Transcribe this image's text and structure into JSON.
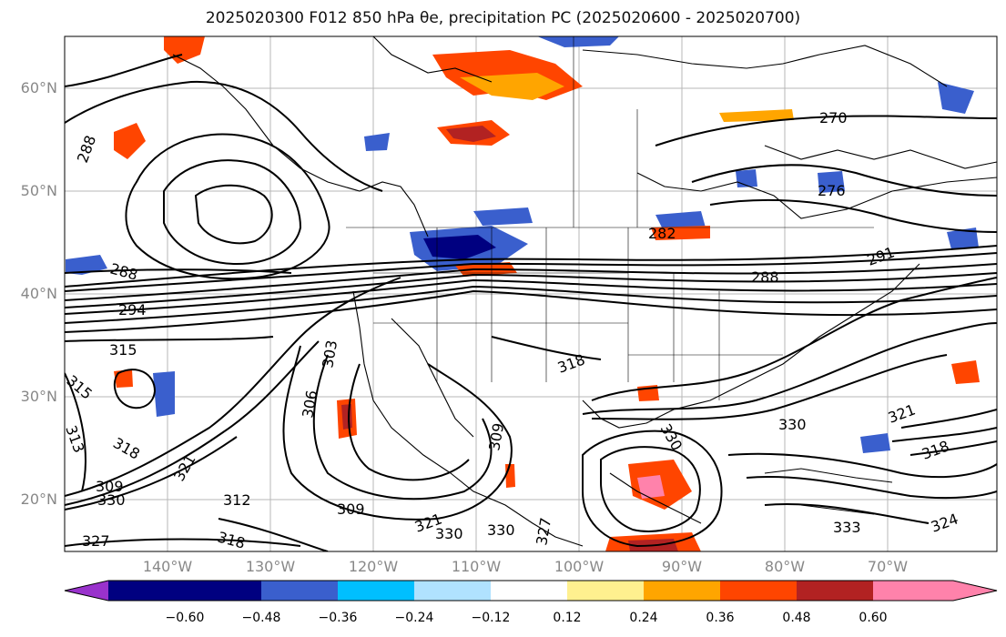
{
  "title": "2025020300 F012 850 hPa θe, precipitation PC (2025020600 - 2025020700)",
  "map": {
    "lat_labels": [
      "60°N",
      "50°N",
      "40°N",
      "30°N",
      "20°N"
    ],
    "lon_labels": [
      "140°W",
      "130°W",
      "120°W",
      "110°W",
      "100°W",
      "90°W",
      "80°W",
      "70°W"
    ],
    "contour_labels": [
      {
        "text": "288"
      },
      {
        "text": "288"
      },
      {
        "text": "294"
      },
      {
        "text": "315"
      },
      {
        "text": "315"
      },
      {
        "text": "318"
      },
      {
        "text": "313"
      },
      {
        "text": "309"
      },
      {
        "text": "330"
      },
      {
        "text": "327"
      },
      {
        "text": "321"
      },
      {
        "text": "312"
      },
      {
        "text": "318"
      },
      {
        "text": "309"
      },
      {
        "text": "306"
      },
      {
        "text": "303"
      },
      {
        "text": "321"
      },
      {
        "text": "330"
      },
      {
        "text": "330"
      },
      {
        "text": "327"
      },
      {
        "text": "318"
      },
      {
        "text": "309"
      },
      {
        "text": "330"
      },
      {
        "text": "270"
      },
      {
        "text": "276"
      },
      {
        "text": "282"
      },
      {
        "text": "288"
      },
      {
        "text": "291"
      },
      {
        "text": "321"
      },
      {
        "text": "318"
      },
      {
        "text": "330"
      },
      {
        "text": "333"
      },
      {
        "text": "324"
      }
    ]
  },
  "colorbar": {
    "tick_labels": [
      "−0.60",
      "−0.48",
      "−0.36",
      "−0.24",
      "−0.12",
      "0.12",
      "0.24",
      "0.36",
      "0.48",
      "0.60"
    ],
    "colors": [
      "#9932cc",
      "#000080",
      "#3a5fcd",
      "#00bfff",
      "#b0e2ff",
      "#ffffff",
      "#fff08f",
      "#ffa500",
      "#ff4500",
      "#b22222",
      "#ff82ab"
    ]
  }
}
